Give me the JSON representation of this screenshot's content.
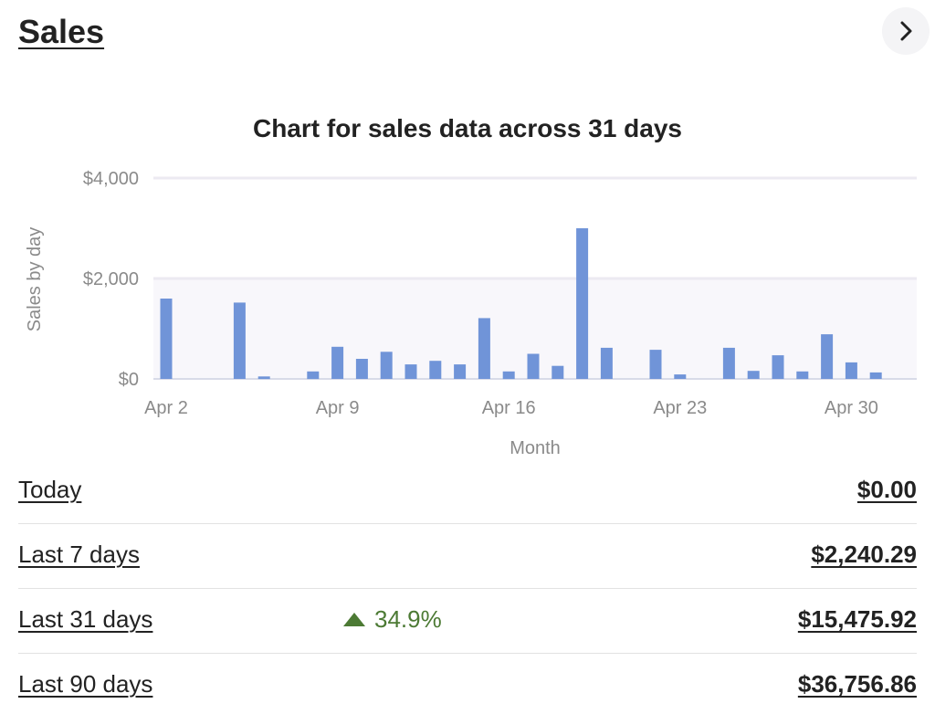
{
  "header": {
    "title": "Sales",
    "next_icon": "chevron-right-icon"
  },
  "chart_data": {
    "type": "bar",
    "title": "Chart for sales data across 31 days",
    "xlabel": "Month",
    "ylabel": "Sales by day",
    "ylim": [
      0,
      4000
    ],
    "yticks": [
      {
        "value": 0,
        "label": "$0"
      },
      {
        "value": 2000,
        "label": "$2,000"
      },
      {
        "value": 4000,
        "label": "$4,000"
      }
    ],
    "xticks": [
      {
        "day": 2,
        "label": "Apr 2"
      },
      {
        "day": 9,
        "label": "Apr 9"
      },
      {
        "day": 16,
        "label": "Apr 16"
      },
      {
        "day": 23,
        "label": "Apr 23"
      },
      {
        "day": 30,
        "label": "Apr 30"
      }
    ],
    "categories": [
      "Apr 2",
      "Apr 3",
      "Apr 4",
      "Apr 5",
      "Apr 6",
      "Apr 7",
      "Apr 8",
      "Apr 9",
      "Apr 10",
      "Apr 11",
      "Apr 12",
      "Apr 13",
      "Apr 14",
      "Apr 15",
      "Apr 16",
      "Apr 17",
      "Apr 18",
      "Apr 19",
      "Apr 20",
      "Apr 21",
      "Apr 22",
      "Apr 23",
      "Apr 24",
      "Apr 25",
      "Apr 26",
      "Apr 27",
      "Apr 28",
      "Apr 29",
      "Apr 30",
      "May 1"
    ],
    "values": [
      1600,
      0,
      0,
      1520,
      50,
      0,
      150,
      640,
      400,
      540,
      290,
      360,
      290,
      1210,
      150,
      500,
      260,
      3000,
      620,
      0,
      580,
      90,
      0,
      620,
      160,
      470,
      150,
      890,
      330,
      130
    ],
    "bar_color": "#7094d8",
    "grid": true
  },
  "summary": [
    {
      "label": "Today",
      "value": "$0.00",
      "change": ""
    },
    {
      "label": "Last 7 days",
      "value": "$2,240.29",
      "change": ""
    },
    {
      "label": "Last 31 days",
      "value": "$15,475.92",
      "change": "34.9%"
    },
    {
      "label": "Last 90 days",
      "value": "$36,756.86",
      "change": ""
    }
  ],
  "colors": {
    "positive": "#4c7a34",
    "bar": "#7094d8"
  }
}
